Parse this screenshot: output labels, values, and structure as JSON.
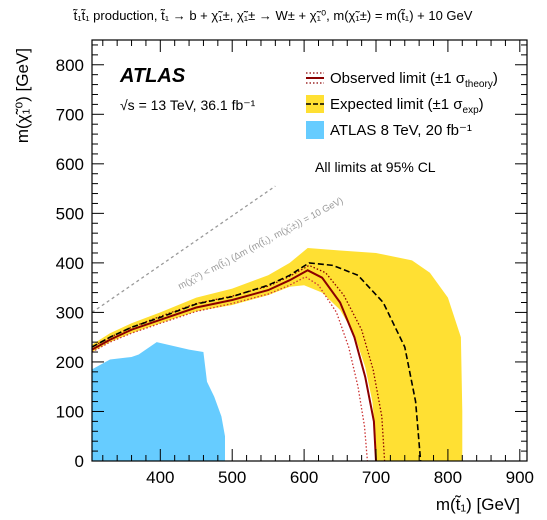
{
  "chart_data": {
    "type": "line",
    "title": "t̃₁t̃₁ production, t̃₁ → b + χ̃₁±, χ̃₁± → W± + χ̃₁⁰, m(χ̃₁±) = m(t̃₁) + 10 GeV",
    "xlabel": "m(t̃₁) [GeV]",
    "ylabel": "m(χ̃₁⁰) [GeV]",
    "xlim": [
      305,
      910
    ],
    "ylim": [
      0,
      850
    ],
    "xticks": [
      400,
      500,
      600,
      700,
      800,
      900
    ],
    "yticks": [
      0,
      100,
      200,
      300,
      400,
      500,
      600,
      700,
      800
    ],
    "grid": false,
    "legend_position": "top-right",
    "atlas_label": "ATLAS",
    "energy_label": "√s = 13 TeV, 36.1 fb⁻¹",
    "note": "All limits at 95% CL",
    "diagonal_label": "m(χ̃₁⁰) < m(t̃₁) (Δm (m(t̃₁), m(χ̃₁±)) = 10 GeV)",
    "legend": [
      {
        "label": "Observed limit (±1 σ",
        "sub": "theory",
        "tail": ")",
        "style": "observed"
      },
      {
        "label": "Expected limit (±1 σ",
        "sub": "exp",
        "tail": ")",
        "style": "expected"
      },
      {
        "label": "ATLAS 8 TeV, 20 fb⁻¹",
        "style": "run1"
      }
    ],
    "series": [
      {
        "name": "Observed limit",
        "color": "#8b0000",
        "points": [
          [
            305,
            225
          ],
          [
            330,
            245
          ],
          [
            360,
            265
          ],
          [
            400,
            285
          ],
          [
            450,
            310
          ],
          [
            500,
            325
          ],
          [
            550,
            345
          ],
          [
            580,
            365
          ],
          [
            605,
            385
          ],
          [
            625,
            370
          ],
          [
            650,
            320
          ],
          [
            670,
            250
          ],
          [
            685,
            170
          ],
          [
            697,
            80
          ],
          [
            700,
            0
          ]
        ]
      },
      {
        "name": "Observed +1σ theory",
        "color": "#8b0000",
        "points": [
          [
            305,
            230
          ],
          [
            330,
            250
          ],
          [
            360,
            270
          ],
          [
            400,
            292
          ],
          [
            450,
            318
          ],
          [
            500,
            333
          ],
          [
            550,
            353
          ],
          [
            580,
            373
          ],
          [
            607,
            395
          ],
          [
            630,
            380
          ],
          [
            655,
            335
          ],
          [
            680,
            265
          ],
          [
            696,
            185
          ],
          [
            708,
            90
          ],
          [
            712,
            0
          ]
        ]
      },
      {
        "name": "Observed -1σ theory",
        "color": "#cc3333",
        "points": [
          [
            305,
            220
          ],
          [
            330,
            240
          ],
          [
            360,
            258
          ],
          [
            400,
            278
          ],
          [
            450,
            302
          ],
          [
            500,
            318
          ],
          [
            550,
            337
          ],
          [
            580,
            355
          ],
          [
            602,
            372
          ],
          [
            620,
            355
          ],
          [
            645,
            300
          ],
          [
            662,
            230
          ],
          [
            675,
            150
          ],
          [
            684,
            70
          ],
          [
            688,
            0
          ]
        ]
      },
      {
        "name": "Expected limit",
        "color": "#000000",
        "points": [
          [
            305,
            230
          ],
          [
            330,
            250
          ],
          [
            360,
            270
          ],
          [
            400,
            290
          ],
          [
            450,
            317
          ],
          [
            500,
            332
          ],
          [
            550,
            355
          ],
          [
            580,
            375
          ],
          [
            607,
            400
          ],
          [
            640,
            395
          ],
          [
            675,
            375
          ],
          [
            710,
            320
          ],
          [
            740,
            230
          ],
          [
            755,
            120
          ],
          [
            762,
            0
          ]
        ]
      },
      {
        "name": "ATLAS 8 TeV, 20 fb⁻¹",
        "color": "#66ccff",
        "points": [
          [
            305,
            185
          ],
          [
            330,
            205
          ],
          [
            360,
            210
          ],
          [
            370,
            215
          ],
          [
            375,
            220
          ],
          [
            395,
            240
          ],
          [
            410,
            235
          ],
          [
            440,
            225
          ],
          [
            460,
            220
          ],
          [
            465,
            160
          ],
          [
            475,
            130
          ],
          [
            485,
            90
          ],
          [
            490,
            50
          ],
          [
            490,
            0
          ],
          [
            305,
            0
          ]
        ]
      }
    ],
    "bands": [
      {
        "name": "Expected limit ±1 σexp",
        "color": "#ffe033",
        "upper": [
          [
            305,
            235
          ],
          [
            330,
            258
          ],
          [
            360,
            278
          ],
          [
            400,
            300
          ],
          [
            450,
            330
          ],
          [
            500,
            348
          ],
          [
            550,
            375
          ],
          [
            580,
            400
          ],
          [
            605,
            430
          ],
          [
            650,
            425
          ],
          [
            700,
            420
          ],
          [
            750,
            405
          ],
          [
            775,
            380
          ],
          [
            800,
            330
          ],
          [
            818,
            250
          ],
          [
            820,
            100
          ],
          [
            820,
            0
          ]
        ],
        "lower": [
          [
            305,
            220
          ],
          [
            330,
            240
          ],
          [
            360,
            258
          ],
          [
            400,
            278
          ],
          [
            450,
            302
          ],
          [
            500,
            315
          ],
          [
            550,
            335
          ],
          [
            580,
            352
          ],
          [
            600,
            355
          ],
          [
            625,
            340
          ],
          [
            650,
            305
          ],
          [
            670,
            255
          ],
          [
            685,
            190
          ],
          [
            695,
            120
          ],
          [
            700,
            40
          ],
          [
            700,
            0
          ]
        ]
      }
    ]
  }
}
